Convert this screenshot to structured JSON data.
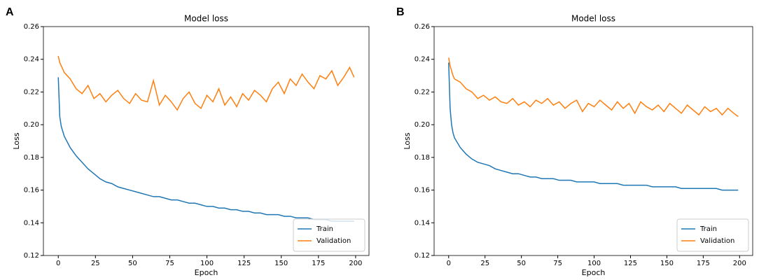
{
  "chart_data": [
    {
      "type": "line",
      "label": "A",
      "title": "Model loss",
      "x_label": "Epoch",
      "y_label": "Loss",
      "x": [
        0,
        1,
        2,
        3,
        4,
        8,
        12,
        16,
        20,
        24,
        28,
        32,
        36,
        40,
        44,
        48,
        52,
        56,
        60,
        64,
        68,
        72,
        76,
        80,
        84,
        88,
        92,
        96,
        100,
        104,
        108,
        112,
        116,
        120,
        124,
        128,
        132,
        136,
        140,
        144,
        148,
        152,
        156,
        160,
        164,
        168,
        172,
        176,
        180,
        184,
        188,
        192,
        196,
        199
      ],
      "series": [
        {
          "name": "Train",
          "color": "#1f77b4",
          "values": [
            0.229,
            0.205,
            0.199,
            0.196,
            0.193,
            0.186,
            0.181,
            0.177,
            0.173,
            0.17,
            0.167,
            0.165,
            0.164,
            0.162,
            0.161,
            0.16,
            0.159,
            0.158,
            0.157,
            0.156,
            0.156,
            0.155,
            0.154,
            0.154,
            0.153,
            0.152,
            0.152,
            0.151,
            0.15,
            0.15,
            0.149,
            0.149,
            0.148,
            0.148,
            0.147,
            0.147,
            0.146,
            0.146,
            0.145,
            0.145,
            0.145,
            0.144,
            0.144,
            0.143,
            0.143,
            0.143,
            0.142,
            0.142,
            0.142,
            0.141,
            0.141,
            0.141,
            0.141,
            0.141
          ]
        },
        {
          "name": "Validation",
          "color": "#ff7f0e",
          "values": [
            0.242,
            0.238,
            0.236,
            0.234,
            0.232,
            0.228,
            0.222,
            0.219,
            0.224,
            0.216,
            0.219,
            0.214,
            0.218,
            0.221,
            0.216,
            0.213,
            0.219,
            0.215,
            0.214,
            0.227,
            0.212,
            0.218,
            0.214,
            0.209,
            0.216,
            0.22,
            0.213,
            0.21,
            0.218,
            0.214,
            0.222,
            0.212,
            0.217,
            0.211,
            0.219,
            0.215,
            0.221,
            0.218,
            0.214,
            0.222,
            0.226,
            0.219,
            0.228,
            0.224,
            0.231,
            0.226,
            0.222,
            0.23,
            0.228,
            0.233,
            0.224,
            0.229,
            0.235,
            0.229
          ]
        }
      ],
      "xlim": [
        -10,
        209
      ],
      "ylim": [
        0.12,
        0.26
      ],
      "xticks": [
        0,
        25,
        50,
        75,
        100,
        125,
        150,
        175,
        200
      ],
      "yticks": [
        0.12,
        0.14,
        0.16,
        0.18,
        {
          "value": 0.2,
          "label": "0.20"
        },
        0.22,
        0.24,
        0.26
      ],
      "legend": "lower right"
    },
    {
      "type": "line",
      "label": "B",
      "title": "Model loss",
      "x_label": "Epoch",
      "y_label": "Loss",
      "x": [
        0,
        1,
        2,
        3,
        4,
        8,
        12,
        16,
        20,
        24,
        28,
        32,
        36,
        40,
        44,
        48,
        52,
        56,
        60,
        64,
        68,
        72,
        76,
        80,
        84,
        88,
        92,
        96,
        100,
        104,
        108,
        112,
        116,
        120,
        124,
        128,
        132,
        136,
        140,
        144,
        148,
        152,
        156,
        160,
        164,
        168,
        172,
        176,
        180,
        184,
        188,
        192,
        196,
        199
      ],
      "series": [
        {
          "name": "Train",
          "color": "#1f77b4",
          "values": [
            0.238,
            0.21,
            0.2,
            0.195,
            0.192,
            0.186,
            0.182,
            0.179,
            0.177,
            0.176,
            0.175,
            0.173,
            0.172,
            0.171,
            0.17,
            0.17,
            0.169,
            0.168,
            0.168,
            0.167,
            0.167,
            0.167,
            0.166,
            0.166,
            0.166,
            0.165,
            0.165,
            0.165,
            0.165,
            0.164,
            0.164,
            0.164,
            0.164,
            0.163,
            0.163,
            0.163,
            0.163,
            0.163,
            0.162,
            0.162,
            0.162,
            0.162,
            0.162,
            0.161,
            0.161,
            0.161,
            0.161,
            0.161,
            0.161,
            0.161,
            0.16,
            0.16,
            0.16,
            0.16
          ]
        },
        {
          "name": "Validation",
          "color": "#ff7f0e",
          "values": [
            0.241,
            0.236,
            0.233,
            0.23,
            0.228,
            0.226,
            0.222,
            0.22,
            0.216,
            0.218,
            0.215,
            0.217,
            0.214,
            0.213,
            0.216,
            0.212,
            0.214,
            0.211,
            0.215,
            0.213,
            0.216,
            0.212,
            0.214,
            0.21,
            0.213,
            0.215,
            0.208,
            0.213,
            0.211,
            0.215,
            0.212,
            0.209,
            0.214,
            0.21,
            0.213,
            0.207,
            0.214,
            0.211,
            0.209,
            0.212,
            0.208,
            0.213,
            0.21,
            0.207,
            0.212,
            0.209,
            0.206,
            0.211,
            0.208,
            0.21,
            0.206,
            0.21,
            0.207,
            0.205
          ]
        }
      ],
      "xlim": [
        -10,
        209
      ],
      "ylim": [
        0.12,
        0.26
      ],
      "xticks": [
        0,
        25,
        50,
        75,
        100,
        125,
        150,
        175,
        200
      ],
      "yticks": [
        0.12,
        0.14,
        0.16,
        0.18,
        {
          "value": 0.2,
          "label": "0.20"
        },
        0.22,
        0.24,
        0.26
      ],
      "legend": "lower right"
    }
  ]
}
